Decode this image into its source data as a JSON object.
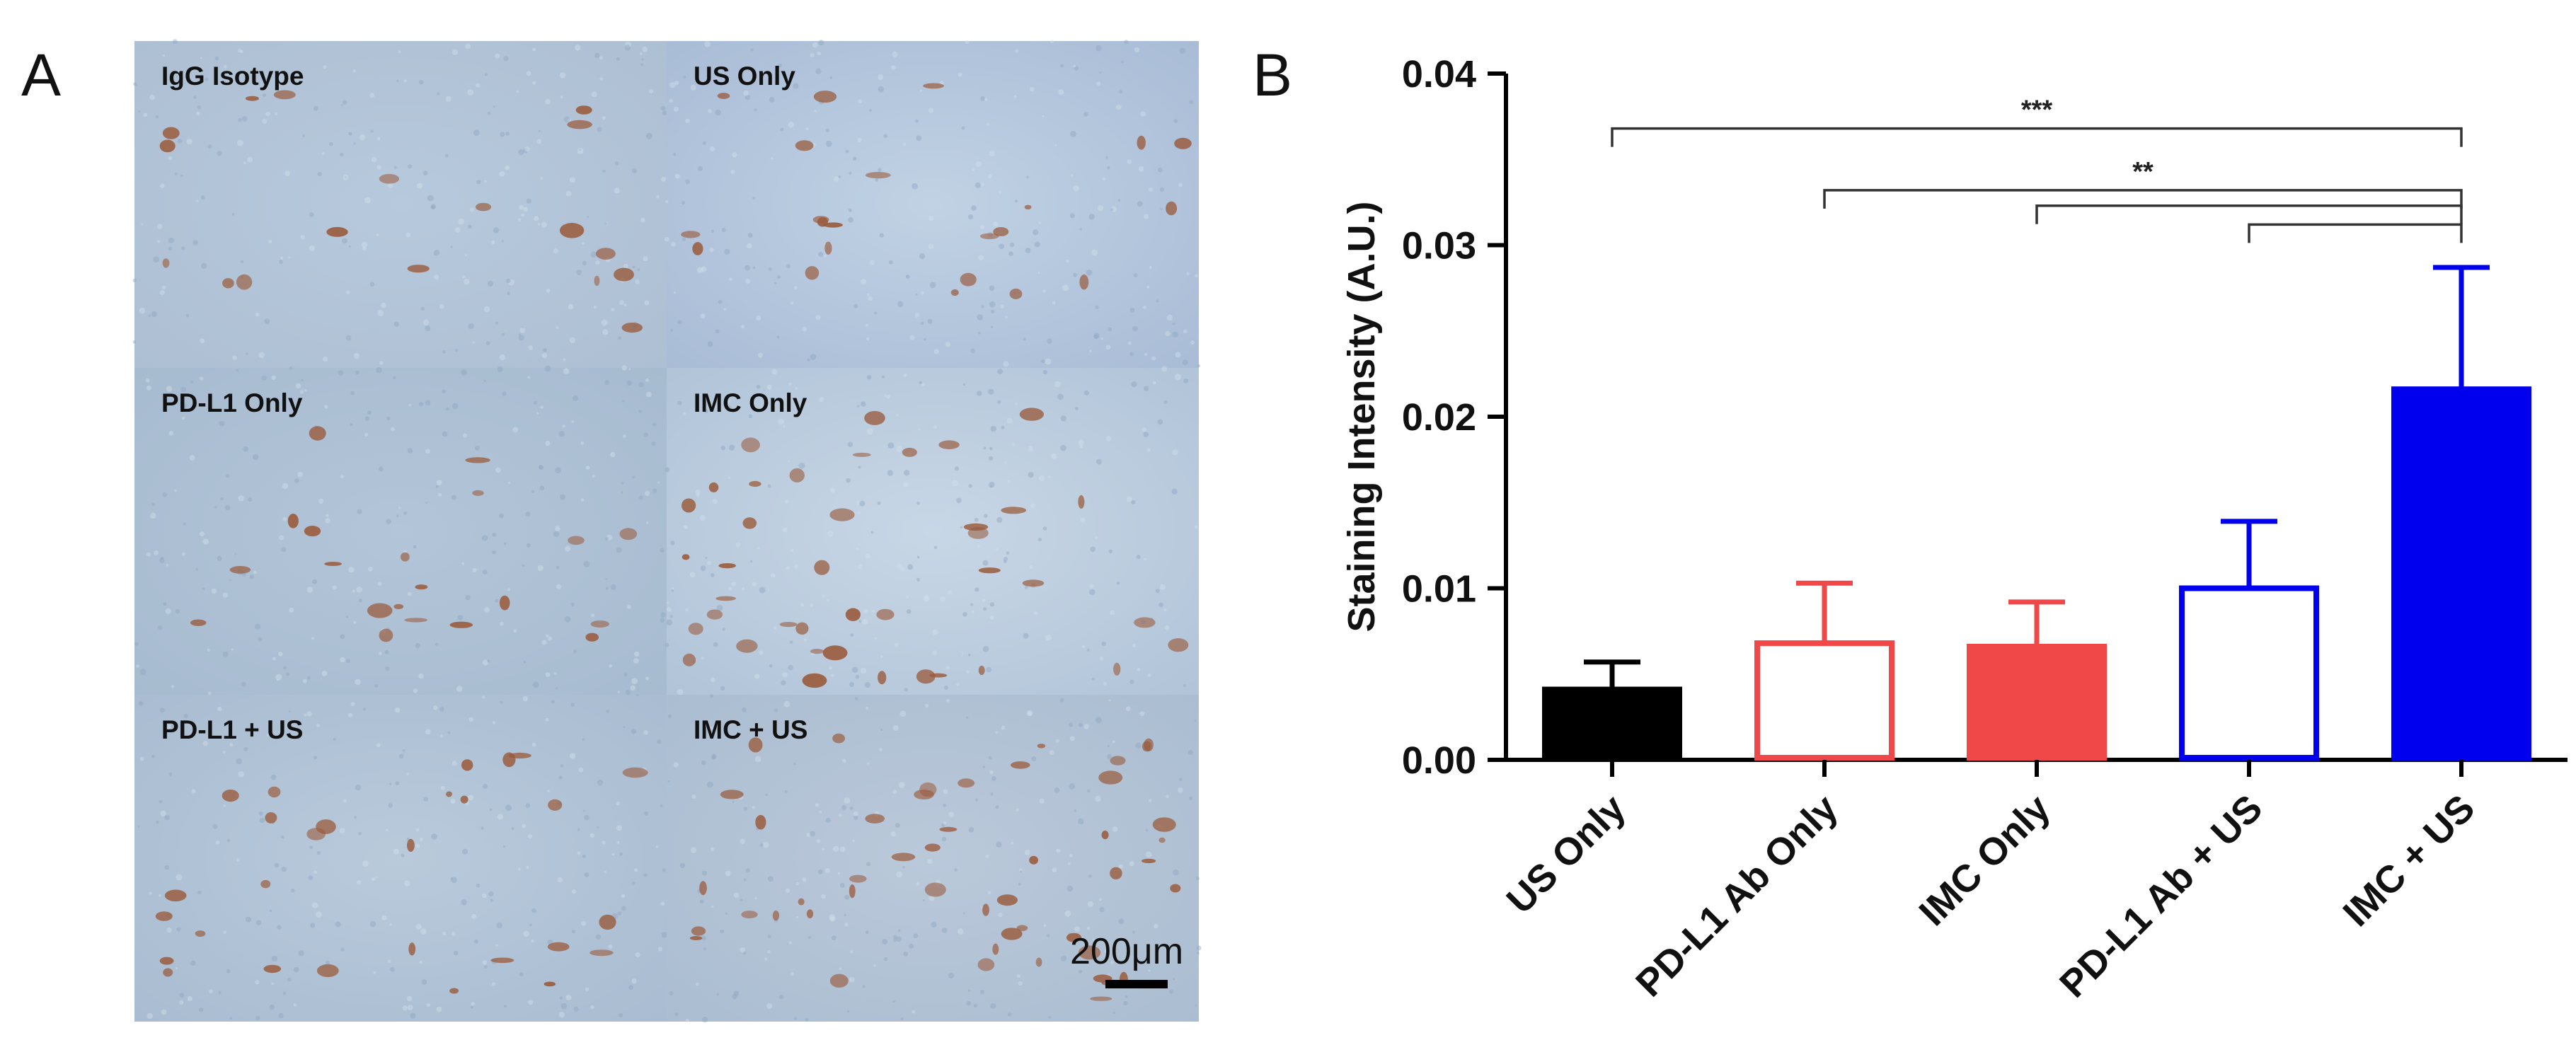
{
  "panels": {
    "a_label": "A",
    "b_label": "B"
  },
  "micrographs": {
    "tiles": [
      {
        "label": "IgG Isotype",
        "base": "#aebfd3",
        "tint": "#b7c9dc"
      },
      {
        "label": "US Only",
        "base": "#a9bcd6",
        "tint": "#c1d2e4"
      },
      {
        "label": "PD-L1 Only",
        "base": "#a7bbd0",
        "tint": "#b3c5d8"
      },
      {
        "label": "IMC Only",
        "base": "#b1c4d8",
        "tint": "#c8d7e6"
      },
      {
        "label": "PD-L1 + US",
        "base": "#a9bcd1",
        "tint": "#b9cadb"
      },
      {
        "label": "IMC + US",
        "base": "#abbdd1",
        "tint": "#bac9da"
      }
    ],
    "stain_color": "#9a5a3a",
    "scale_bar_label": "200μm"
  },
  "chart_data": {
    "type": "bar",
    "title": "",
    "ylabel": "Staining Intensity (A.U.)",
    "ylim": [
      0,
      0.04
    ],
    "yticks": [
      "0.00",
      "0.01",
      "0.02",
      "0.03",
      "0.04"
    ],
    "categories": [
      "US Only",
      "PD-L1 Ab Only",
      "IMC Only",
      "PD-L1 Ab + US",
      "IMC + US"
    ],
    "values": [
      0.0041,
      0.0068,
      0.0066,
      0.01,
      0.0216
    ],
    "errors": [
      0.0016,
      0.0035,
      0.0026,
      0.0039,
      0.0071
    ],
    "bar_fill": [
      "#000000",
      "#ffffff",
      "#f04848",
      "#ffffff",
      "#0000ee"
    ],
    "bar_edge": [
      "#000000",
      "#f04848",
      "#f04848",
      "#0000ee",
      "#0000ee"
    ],
    "significance": [
      {
        "from": 0,
        "to": 4,
        "label": "***",
        "level": 0.0368
      },
      {
        "from": 1,
        "to": 4,
        "label": "**",
        "level": 0.0332
      },
      {
        "from": 2,
        "to": 4,
        "label": "",
        "level": 0.0323
      },
      {
        "from": 3,
        "to": 4,
        "label": "",
        "level": 0.0312
      }
    ]
  }
}
